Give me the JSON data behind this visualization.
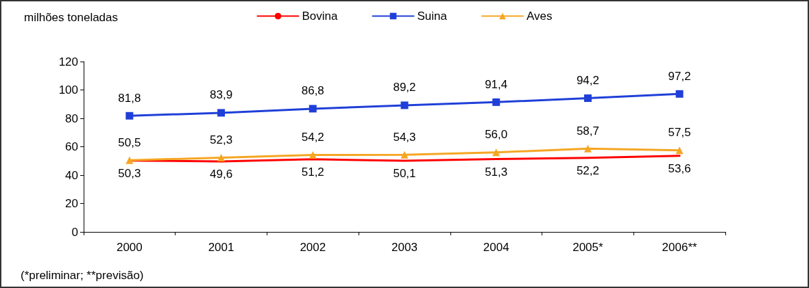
{
  "chart_data": {
    "type": "line",
    "ylabel": "milhões toneladas",
    "categories": [
      "2000",
      "2001",
      "2002",
      "2003",
      "2004",
      "2005*",
      "2006**"
    ],
    "series": [
      {
        "name": "Bovina",
        "color": "#ff0000",
        "marker": "none",
        "values": [
          50.3,
          49.6,
          51.2,
          50.1,
          51.3,
          52.2,
          53.6
        ],
        "value_labels": [
          "50,3",
          "49,6",
          "51,2",
          "50,1",
          "51,3",
          "52,2",
          "53,6"
        ]
      },
      {
        "name": "Suina",
        "color": "#1f3fd8",
        "marker": "square",
        "values": [
          81.8,
          83.9,
          86.8,
          89.2,
          91.4,
          94.2,
          97.2
        ],
        "value_labels": [
          "81,8",
          "83,9",
          "86,8",
          "89,2",
          "91,4",
          "94,2",
          "97,2"
        ]
      },
      {
        "name": "Aves",
        "color": "#f5a623",
        "marker": "triangle",
        "values": [
          50.5,
          52.3,
          54.2,
          54.3,
          56.0,
          58.7,
          57.5
        ],
        "value_labels": [
          "50,5",
          "52,3",
          "54,2",
          "54,3",
          "56,0",
          "58,7",
          "57,5"
        ]
      }
    ],
    "ylim": [
      0,
      120
    ],
    "yticks": [
      0,
      20,
      40,
      60,
      80,
      100,
      120
    ],
    "grid": false,
    "legend": "top",
    "annotations": [
      "(*preliminar; **previsão)"
    ]
  }
}
